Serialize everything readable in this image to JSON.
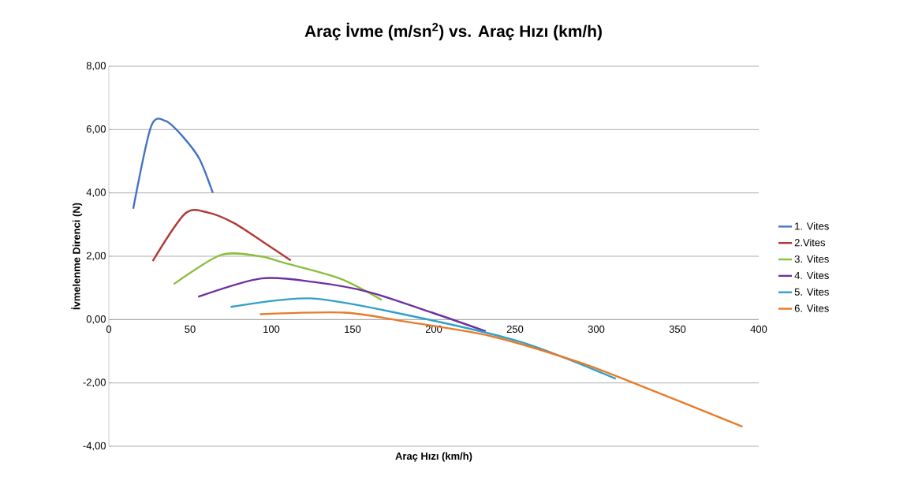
{
  "chart_data": {
    "type": "line",
    "title": "Araç İvme (m/sn$^{2}$) vs. Araç Hızı (km/h)",
    "xlabel": "Araç Hızı (km/h)",
    "ylabel": "İvmelenme Direnci (N)",
    "xlim": [
      0,
      400
    ],
    "xticks": [
      0,
      50,
      100,
      150,
      200,
      250,
      300,
      350,
      400
    ],
    "ylim": [
      -4,
      8
    ],
    "yticks": [
      {
        "value": -4,
        "label": "-4,00"
      },
      {
        "value": -2,
        "label": "-2,00"
      },
      {
        "value": 0,
        "label": "0,00"
      },
      {
        "value": 2,
        "label": "2,00"
      },
      {
        "value": 4,
        "label": "4,00"
      },
      {
        "value": 6,
        "label": "6,00"
      },
      {
        "value": 8,
        "label": "8,00"
      }
    ],
    "grid": "y",
    "legend": "right",
    "marker": "none",
    "line_style": "solid",
    "series": [
      {
        "name": "1. Vites",
        "color": "#4472c4",
        "x": [
          15,
          26,
          35,
          46,
          56,
          64
        ],
        "values": [
          3.5,
          6.1,
          6.27,
          5.75,
          5.05,
          4.0
        ]
      },
      {
        "name": "2.Vites",
        "color": "#b03a36",
        "x": [
          27,
          47,
          61,
          77,
          95,
          112
        ],
        "values": [
          1.85,
          3.35,
          3.38,
          3.05,
          2.45,
          1.87
        ]
      },
      {
        "name": "3. Vites",
        "color": "#8cbf3f",
        "x": [
          40,
          69,
          93,
          108,
          142,
          168
        ],
        "values": [
          1.12,
          2.04,
          2.0,
          1.79,
          1.3,
          0.62
        ]
      },
      {
        "name": "4. Vites",
        "color": "#7030a0",
        "x": [
          55,
          94,
          127,
          160,
          199,
          232
        ],
        "values": [
          0.72,
          1.3,
          1.18,
          0.87,
          0.22,
          -0.37
        ]
      },
      {
        "name": "5. Vites",
        "color": "#31a0c8",
        "x": [
          75,
          124,
          181,
          253,
          312
        ],
        "values": [
          0.4,
          0.67,
          0.17,
          -0.7,
          -1.87
        ]
      },
      {
        "name": "6. Vites",
        "color": "#e87a2a",
        "x": [
          93,
          145,
          181,
          235,
          289,
          325,
          390
        ],
        "values": [
          0.17,
          0.22,
          -0.05,
          -0.52,
          -1.34,
          -2.04,
          -3.38
        ]
      }
    ]
  }
}
